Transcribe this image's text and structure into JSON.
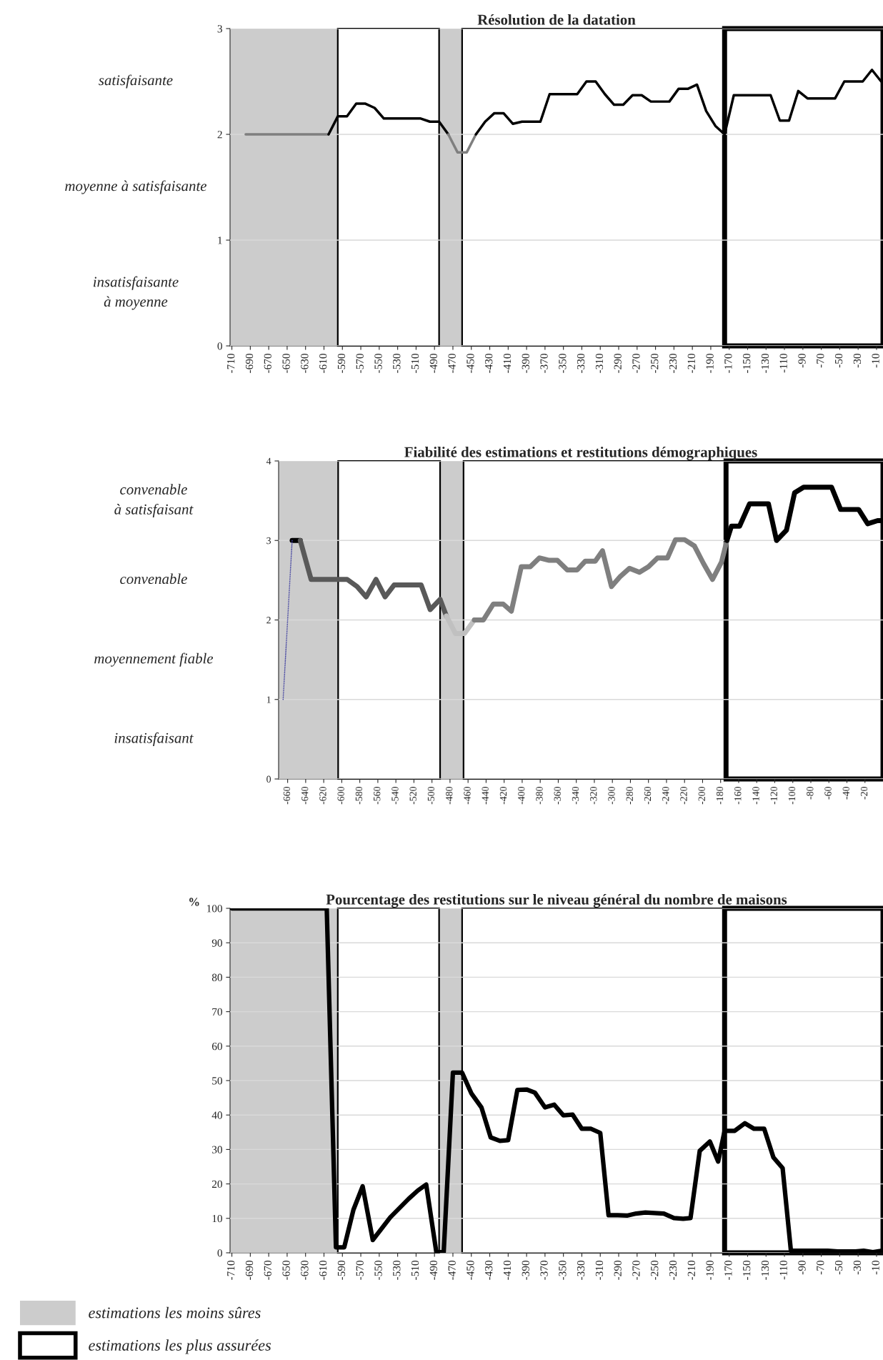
{
  "chart_data": [
    {
      "type": "line",
      "title": "Résolution de la datation",
      "xlim": [
        -712,
        -3
      ],
      "ylim": [
        0,
        3
      ],
      "xticks": [
        -710,
        -690,
        -670,
        -650,
        -630,
        -610,
        -590,
        -570,
        -550,
        -530,
        -510,
        -490,
        -470,
        -450,
        -430,
        -410,
        -390,
        -370,
        -350,
        -330,
        -310,
        -290,
        -270,
        -250,
        -230,
        -210,
        -190,
        -170,
        -150,
        -130,
        -110,
        -90,
        -70,
        -50,
        -30,
        -10
      ],
      "yticks": [
        0,
        1,
        2,
        3
      ],
      "grid": "y",
      "annotations": [
        "satisfaisante",
        "moyenne à satisfaisante",
        "insatisfaisante\nà moyenne"
      ],
      "bands": [
        {
          "axis": "x",
          "from": -712,
          "to": -595,
          "color": "#cccccc"
        },
        {
          "axis": "x",
          "from": -485,
          "to": -460,
          "color": "#cccccc"
        },
        {
          "axis": "x",
          "from": -595,
          "to": -485,
          "color": "#ffffff"
        },
        {
          "axis": "x",
          "from": -460,
          "to": -175,
          "color": "#ffffff"
        },
        {
          "axis": "x",
          "from": -175,
          "to": -3,
          "color": "#ffffff"
        }
      ],
      "series": [
        {
          "color": "#7f7f7f",
          "x": [
            -695,
            -605
          ],
          "values": [
            2.0,
            2.0
          ]
        },
        {
          "color": "#000000",
          "x": [
            -605,
            -595,
            -585,
            -575,
            -565,
            -555,
            -545,
            -505,
            -495,
            -485,
            -475
          ],
          "values": [
            2.0,
            2.17,
            2.17,
            2.29,
            2.29,
            2.25,
            2.15,
            2.15,
            2.12,
            2.12,
            2.0
          ]
        },
        {
          "color": "#7f7f7f",
          "x": [
            -475,
            -465,
            -455,
            -445
          ],
          "values": [
            2.0,
            1.83,
            1.83,
            2.0
          ]
        },
        {
          "color": "#000000",
          "x": [
            -445,
            -435,
            -425,
            -415,
            -405,
            -395,
            -375,
            -365,
            -335,
            -325,
            -315,
            -305,
            -295,
            -285,
            -275,
            -265,
            -255,
            -235,
            -225,
            -215,
            -205,
            -195,
            -185,
            -175,
            -165,
            -125,
            -115,
            -105,
            -95,
            -85,
            -55,
            -45,
            -25,
            -15,
            -5
          ],
          "values": [
            2.0,
            2.12,
            2.2,
            2.2,
            2.1,
            2.12,
            2.12,
            2.38,
            2.38,
            2.5,
            2.5,
            2.38,
            2.28,
            2.28,
            2.37,
            2.37,
            2.31,
            2.31,
            2.43,
            2.43,
            2.47,
            2.22,
            2.08,
            2.0,
            2.37,
            2.37,
            2.13,
            2.13,
            2.41,
            2.34,
            2.34,
            2.5,
            2.5,
            2.61,
            2.5
          ]
        }
      ]
    },
    {
      "type": "line",
      "title": "Fiabilité des estimations et restitutions démographiques",
      "xlim": [
        -670,
        0
      ],
      "ylim": [
        0,
        4
      ],
      "xticks": [
        -660,
        -640,
        -620,
        -600,
        -580,
        -560,
        -540,
        -520,
        -500,
        -480,
        -460,
        -440,
        -420,
        -400,
        -380,
        -360,
        -340,
        -320,
        -300,
        -280,
        -260,
        -240,
        -220,
        -200,
        -180,
        -160,
        -140,
        -120,
        -100,
        -80,
        -60,
        -40,
        -20
      ],
      "yticks": [
        0,
        1,
        2,
        3,
        4
      ],
      "grid": "y",
      "annotations": [
        "convenable\nà satisfaisant",
        "convenable",
        "moyennement fiable",
        "insatisfaisant"
      ],
      "bands": [
        {
          "axis": "x",
          "from": -670,
          "to": -604,
          "color": "#cccccc"
        },
        {
          "axis": "x",
          "from": -491,
          "to": -465,
          "color": "#cccccc"
        },
        {
          "axis": "x",
          "from": -604,
          "to": -491,
          "color": "#ffffff"
        },
        {
          "axis": "x",
          "from": -465,
          "to": -174,
          "color": "#ffffff"
        },
        {
          "axis": "x",
          "from": -174,
          "to": 0,
          "color": "#ffffff"
        }
      ],
      "series": [
        {
          "color": "#4040a0",
          "line_style": "dotted",
          "x": [
            -665,
            -655
          ],
          "values": [
            1.0,
            3.0
          ]
        },
        {
          "color": "#000000",
          "x": [
            -655,
            -646
          ],
          "values": [
            3.0,
            3.0
          ]
        },
        {
          "color": "#595959",
          "x": [
            -646,
            -634,
            -603,
            -594,
            -583,
            -573,
            -562,
            -552,
            -542,
            -512,
            -502,
            -491,
            -484
          ],
          "values": [
            3.0,
            2.51,
            2.51,
            2.51,
            2.42,
            2.29,
            2.51,
            2.29,
            2.44,
            2.44,
            2.13,
            2.26,
            2.05
          ]
        },
        {
          "color": "#c0c0c0",
          "x": [
            -484,
            -474,
            -464,
            -453
          ],
          "values": [
            2.05,
            1.83,
            1.83,
            2.0
          ]
        },
        {
          "color": "#7f7f7f",
          "x": [
            -453,
            -443,
            -432,
            -421,
            -412,
            -401,
            -391,
            -381,
            -370,
            -361,
            -350,
            -339,
            -330,
            -319,
            -311,
            -301,
            -291,
            -281,
            -270,
            -260,
            -250,
            -239,
            -230,
            -220,
            -209,
            -199,
            -189,
            -179,
            -173
          ],
          "values": [
            2.0,
            2.0,
            2.2,
            2.2,
            2.11,
            2.67,
            2.67,
            2.78,
            2.75,
            2.75,
            2.63,
            2.63,
            2.74,
            2.74,
            2.87,
            2.42,
            2.55,
            2.65,
            2.6,
            2.67,
            2.78,
            2.78,
            3.01,
            3.01,
            2.93,
            2.71,
            2.51,
            2.73,
            3.0
          ]
        },
        {
          "color": "#000000",
          "x": [
            -173,
            -168,
            -159,
            -148,
            -127,
            -118,
            -107,
            -98,
            -88,
            -57,
            -47,
            -27,
            -17,
            -6,
            0
          ],
          "values": [
            3.0,
            3.18,
            3.18,
            3.46,
            3.46,
            3.0,
            3.13,
            3.6,
            3.67,
            3.67,
            3.39,
            3.39,
            3.21,
            3.25,
            3.25
          ]
        }
      ]
    },
    {
      "type": "line",
      "title": "Pourcentage des restitutions sur le niveau général du nombre de maisons",
      "ylabel": "%",
      "xlim": [
        -712,
        -3
      ],
      "ylim": [
        0,
        100
      ],
      "xticks": [
        -710,
        -690,
        -670,
        -650,
        -630,
        -610,
        -590,
        -570,
        -550,
        -530,
        -510,
        -490,
        -470,
        -450,
        -430,
        -410,
        -390,
        -370,
        -350,
        -330,
        -310,
        -290,
        -270,
        -250,
        -230,
        -210,
        -190,
        -170,
        -150,
        -130,
        -110,
        -90,
        -70,
        -50,
        -30,
        -10
      ],
      "yticks": [
        0,
        10,
        20,
        30,
        40,
        50,
        60,
        70,
        80,
        90,
        100
      ],
      "grid": "y",
      "legend": "bottom left",
      "bands": [
        {
          "axis": "x",
          "from": -712,
          "to": -595,
          "color": "#cccccc",
          "label": "estimations les moins sûres"
        },
        {
          "axis": "x",
          "from": -485,
          "to": -460,
          "color": "#cccccc"
        },
        {
          "axis": "x",
          "from": -595,
          "to": -485,
          "color": "#ffffff"
        },
        {
          "axis": "x",
          "from": -460,
          "to": -175,
          "color": "#ffffff"
        },
        {
          "axis": "x",
          "from": -175,
          "to": -3,
          "color": "#ffffff",
          "label": "estimations les plus assurées"
        }
      ],
      "series": [
        {
          "color": "#000000",
          "x": [
            -710,
            -607,
            -597,
            -588,
            -578,
            -568,
            -557,
            -538,
            -518,
            -508,
            -499,
            -488,
            -480,
            -470,
            -460,
            -450,
            -439,
            -429,
            -419,
            -410,
            -400,
            -390,
            -381,
            -370,
            -360,
            -350,
            -340,
            -330,
            -320,
            -310,
            -301,
            -291,
            -281,
            -271,
            -261,
            -241,
            -230,
            -220,
            -212,
            -202,
            -191,
            -182,
            -175,
            -164,
            -153,
            -143,
            -132,
            -122,
            -112,
            -103,
            -63,
            -52,
            -33,
            -24,
            -14,
            -4
          ],
          "values": [
            100,
            100,
            1.6,
            1.6,
            12.5,
            19.3,
            3.7,
            10.3,
            15.7,
            18.1,
            19.8,
            0.2,
            0.2,
            52.3,
            52.3,
            46.3,
            42.2,
            33.5,
            32.5,
            32.7,
            47.3,
            47.4,
            46.5,
            42.2,
            43.0,
            39.9,
            40.1,
            36.0,
            36.0,
            34.8,
            10.9,
            10.9,
            10.8,
            11.4,
            11.7,
            11.4,
            10.1,
            9.9,
            10.1,
            29.6,
            32.3,
            26.5,
            35.4,
            35.4,
            37.6,
            36.0,
            36.0,
            27.7,
            24.6,
            0.6,
            0.6,
            0.4,
            0.4,
            0.6,
            0.2,
            0.6
          ]
        }
      ]
    }
  ]
}
